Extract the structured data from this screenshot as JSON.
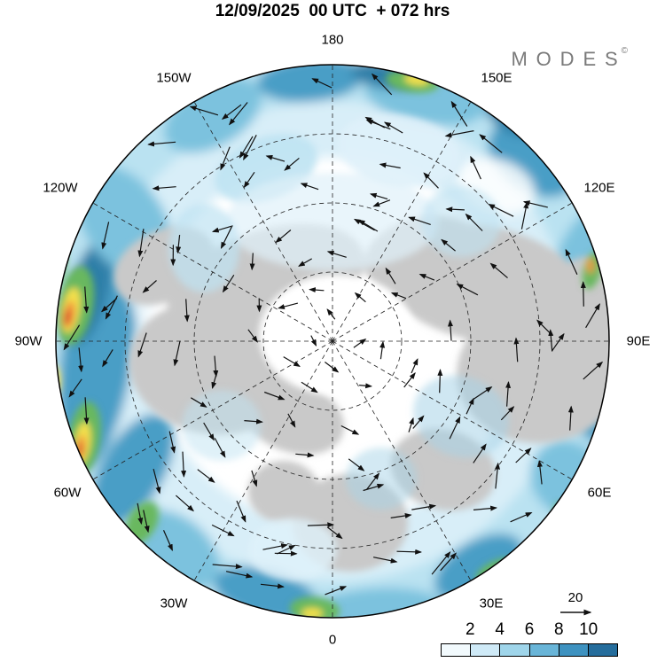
{
  "header": {
    "title": "12/09/2025  00 UTC  + 072 hrs"
  },
  "branding": {
    "logo_text": "MODES",
    "copyright_mark": "©"
  },
  "map": {
    "projection": "polar-stereographic",
    "meridian_labels": [
      "180",
      "150W",
      "120W",
      "90W",
      "60W",
      "30W",
      "0",
      "30E",
      "60E",
      "90E",
      "120E",
      "150E"
    ]
  },
  "legend": {
    "wind_reference": {
      "label": "20"
    },
    "colorbar": {
      "ticks": [
        "2",
        "4",
        "6",
        "8",
        "10"
      ],
      "segment_colors": [
        "#f2fafd",
        "#cfeaf7",
        "#9fd5ea",
        "#69b5d8",
        "#3e92c0",
        "#256d9c"
      ]
    }
  },
  "palette": {
    "land": "#c9c9c9",
    "ocean": "#ffffff",
    "arrow": "#111111"
  }
}
